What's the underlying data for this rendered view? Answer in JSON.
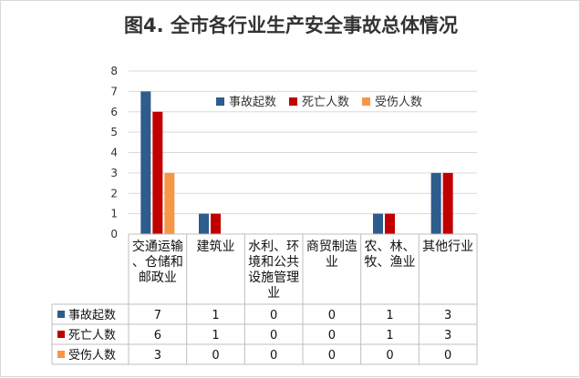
{
  "chart_data": {
    "type": "bar",
    "title": "图4. 全市各行业生产安全事故总体情况",
    "categories": [
      [
        "交通运输",
        "、仓储和",
        "邮政业"
      ],
      [
        "建筑业"
      ],
      [
        "水利、环",
        "境和公共",
        "设施管理",
        "业"
      ],
      [
        "商贸制造",
        "业"
      ],
      [
        "农、林、",
        "牧、渔业"
      ],
      [
        "其他行业"
      ]
    ],
    "series": [
      {
        "name": "事故起数",
        "color": "#2e5c8c",
        "values": [
          7,
          1,
          0,
          0,
          1,
          3
        ]
      },
      {
        "name": "死亡人数",
        "color": "#c00000",
        "values": [
          6,
          1,
          0,
          0,
          1,
          3
        ]
      },
      {
        "name": "受伤人数",
        "color": "#f79646",
        "values": [
          3,
          0,
          0,
          0,
          0,
          0
        ]
      }
    ],
    "ylim": [
      0,
      8
    ],
    "yticks": [
      0,
      1,
      2,
      3,
      4,
      5,
      6,
      7,
      8
    ],
    "grid": true,
    "legend_position": "top-right",
    "data_table": true
  }
}
